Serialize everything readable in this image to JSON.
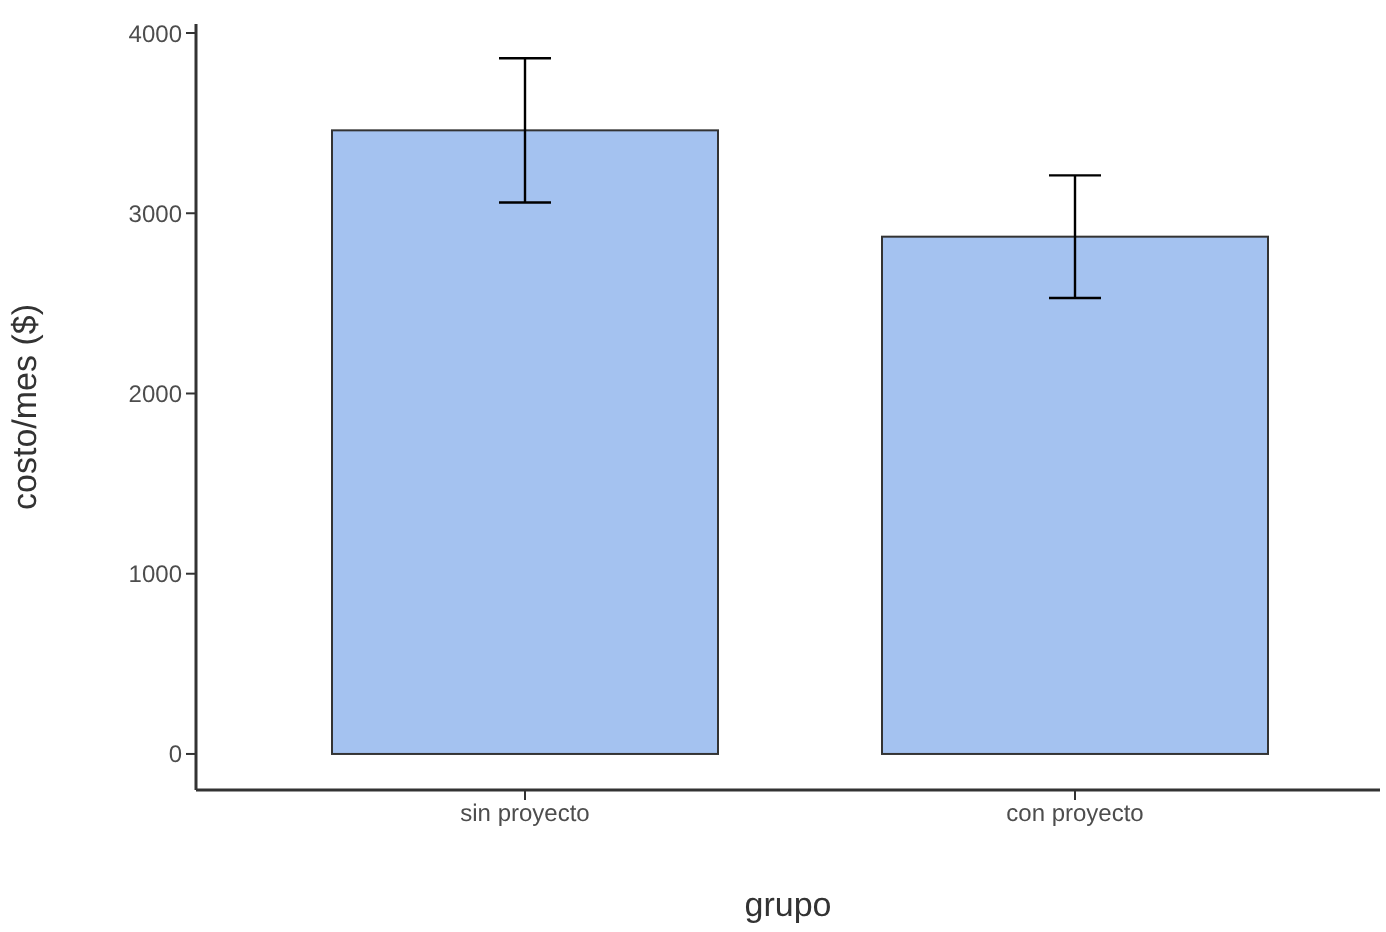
{
  "chart_data": {
    "type": "bar",
    "xlabel": "grupo",
    "ylabel": "costo/mes ($)",
    "categories": [
      "sin proyecto",
      "con proyecto"
    ],
    "values": [
      3460,
      2870
    ],
    "errors": [
      [
        3060,
        3860
      ],
      [
        2530,
        3210
      ]
    ],
    "color": "#a4c2f0",
    "ylim": [
      -200,
      4050
    ],
    "yticks": [
      0,
      1000,
      2000,
      3000,
      4000
    ],
    "grid": false,
    "legend": false
  }
}
